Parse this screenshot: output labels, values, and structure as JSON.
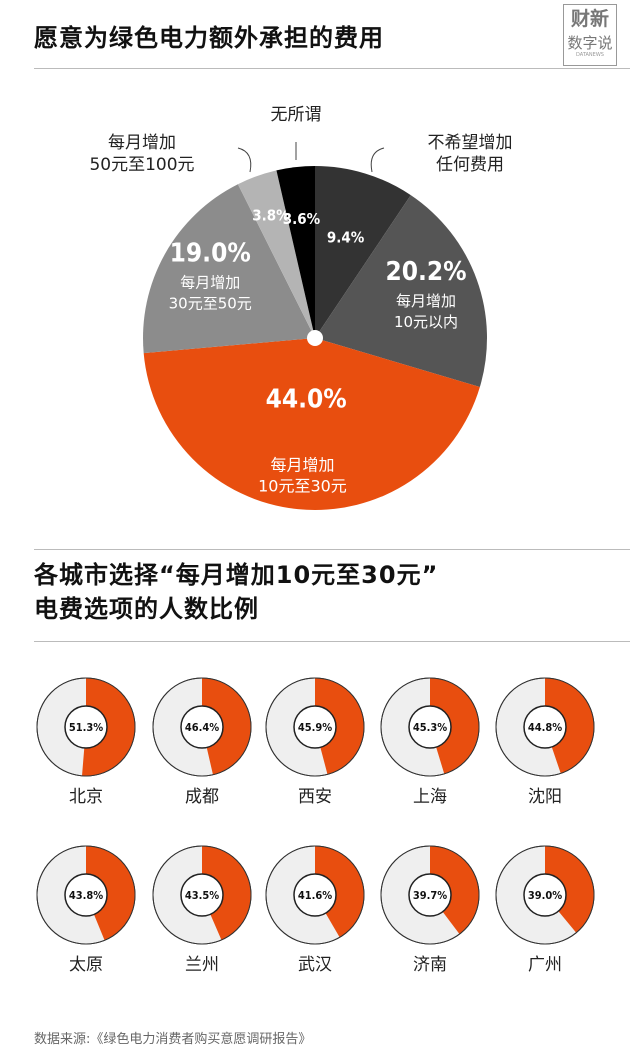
{
  "title": "愿意为绿色电力额外承担的费用",
  "logo": {
    "line1": "财新",
    "line2": "数字说",
    "line3": "DATANEWS"
  },
  "colors": {
    "orange": "#e84e0f",
    "donut_bg": "#efefef",
    "donut_ring": "#222222"
  },
  "chart_data": [
    {
      "type": "pie",
      "title": "愿意为绿色电力额外承担的费用",
      "slices": [
        {
          "label_lines": [
            "不希望增加",
            "任何费用"
          ],
          "value": 9.4,
          "pct_text": "9.4%",
          "color": "#333333"
        },
        {
          "label_lines": [
            "每月增加",
            "10元以内"
          ],
          "value": 20.2,
          "pct_text": "20.2%",
          "color": "#555555"
        },
        {
          "label_lines": [
            "每月增加",
            "10元至30元"
          ],
          "value": 44.0,
          "pct_text": "44.0%",
          "color": "#e84e0f"
        },
        {
          "label_lines": [
            "每月增加",
            "30元至50元"
          ],
          "value": 19.0,
          "pct_text": "19.0%",
          "color": "#8c8c8c"
        },
        {
          "label_lines": [
            "每月增加",
            "50元至100元"
          ],
          "value": 3.8,
          "pct_text": "3.8%",
          "color": "#b4b4b4"
        },
        {
          "label_lines": [
            "无所谓"
          ],
          "value": 3.6,
          "pct_text": "3.6%",
          "color": "#000000"
        }
      ]
    },
    {
      "type": "pie",
      "title": "各城市选择“每月增加10元至30元”电费选项的人数比例",
      "cities": [
        {
          "name": "北京",
          "value": 51.3,
          "pct_text": "51.3%"
        },
        {
          "name": "成都",
          "value": 46.4,
          "pct_text": "46.4%"
        },
        {
          "name": "西安",
          "value": 45.9,
          "pct_text": "45.9%"
        },
        {
          "name": "上海",
          "value": 45.3,
          "pct_text": "45.3%"
        },
        {
          "name": "沈阳",
          "value": 44.8,
          "pct_text": "44.8%"
        },
        {
          "name": "太原",
          "value": 43.8,
          "pct_text": "43.8%"
        },
        {
          "name": "兰州",
          "value": 43.5,
          "pct_text": "43.5%"
        },
        {
          "name": "武汉",
          "value": 41.6,
          "pct_text": "41.6%"
        },
        {
          "name": "济南",
          "value": 39.7,
          "pct_text": "39.7%"
        },
        {
          "name": "广州",
          "value": 39.0,
          "pct_text": "39.0%"
        }
      ]
    }
  ],
  "section2": {
    "title_line1": "各城市选择“每月增加10元至30元”",
    "title_line2": "电费选项的人数比例"
  },
  "source": "数据来源:《绿色电力消费者购买意愿调研报告》"
}
